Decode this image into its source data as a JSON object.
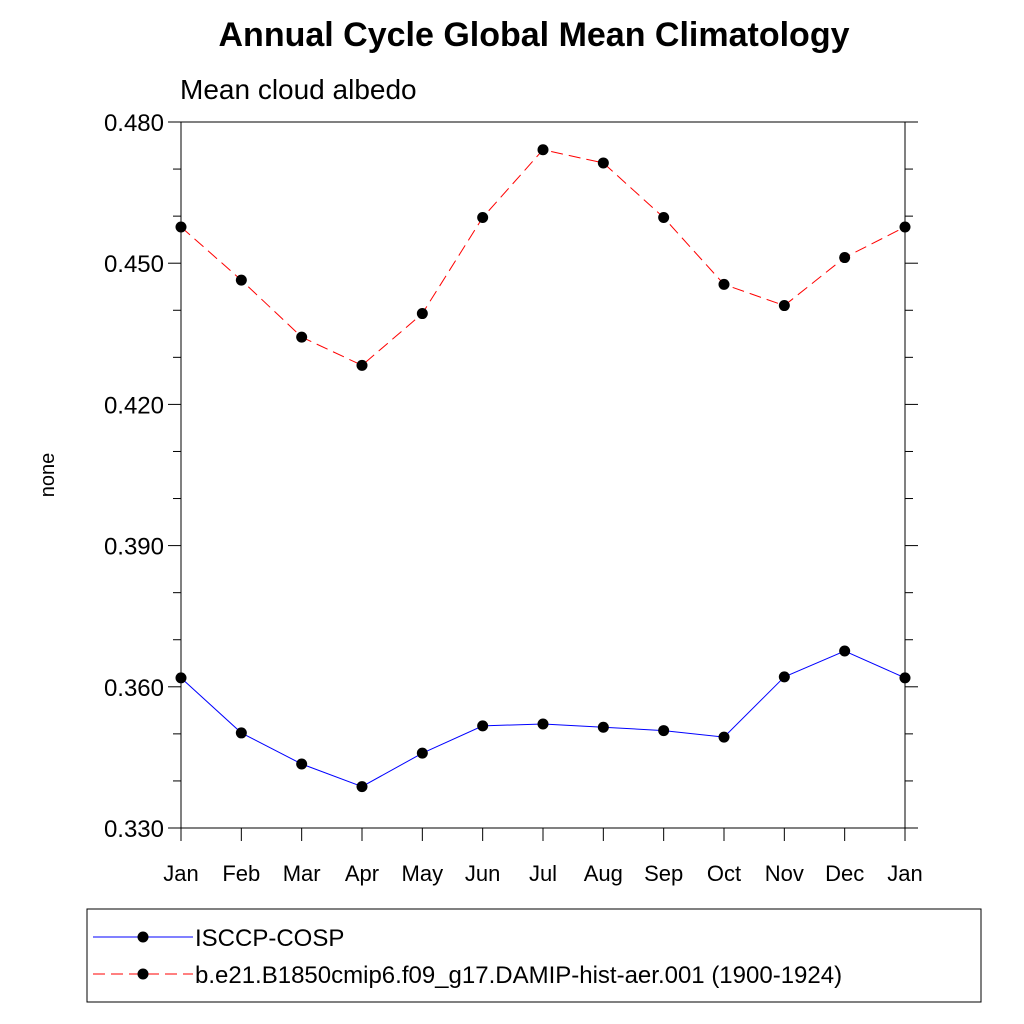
{
  "chart_data": {
    "type": "line",
    "title": "Annual Cycle Global Mean Climatology",
    "subtitle": "Mean cloud albedo",
    "xlabel": "",
    "ylabel": "none",
    "categories": [
      "Jan",
      "Feb",
      "Mar",
      "Apr",
      "May",
      "Jun",
      "Jul",
      "Aug",
      "Sep",
      "Oct",
      "Nov",
      "Dec",
      "Jan"
    ],
    "ylim": [
      0.33,
      0.48
    ],
    "yticks": [
      "0.330",
      "0.360",
      "0.390",
      "0.420",
      "0.450",
      "0.480"
    ],
    "grid": false,
    "legend_position": "bottom",
    "series": [
      {
        "name": "ISCCP-COSP",
        "color": "#0000ff",
        "dash": "solid",
        "marker": "filled-circle",
        "values": [
          0.3619,
          0.3502,
          0.3436,
          0.3388,
          0.3459,
          0.3517,
          0.3521,
          0.3514,
          0.3507,
          0.3493,
          0.3621,
          0.3676,
          0.3619
        ]
      },
      {
        "name": "b.e21.B1850cmip6.f09_g17.DAMIP-hist-aer.001 (1900-1924)",
        "color": "#ff0000",
        "dash": "dashed",
        "marker": "filled-circle",
        "values": [
          0.4577,
          0.4464,
          0.4343,
          0.4283,
          0.4393,
          0.4597,
          0.4741,
          0.4713,
          0.4597,
          0.4455,
          0.441,
          0.4512,
          0.4577
        ]
      }
    ]
  }
}
